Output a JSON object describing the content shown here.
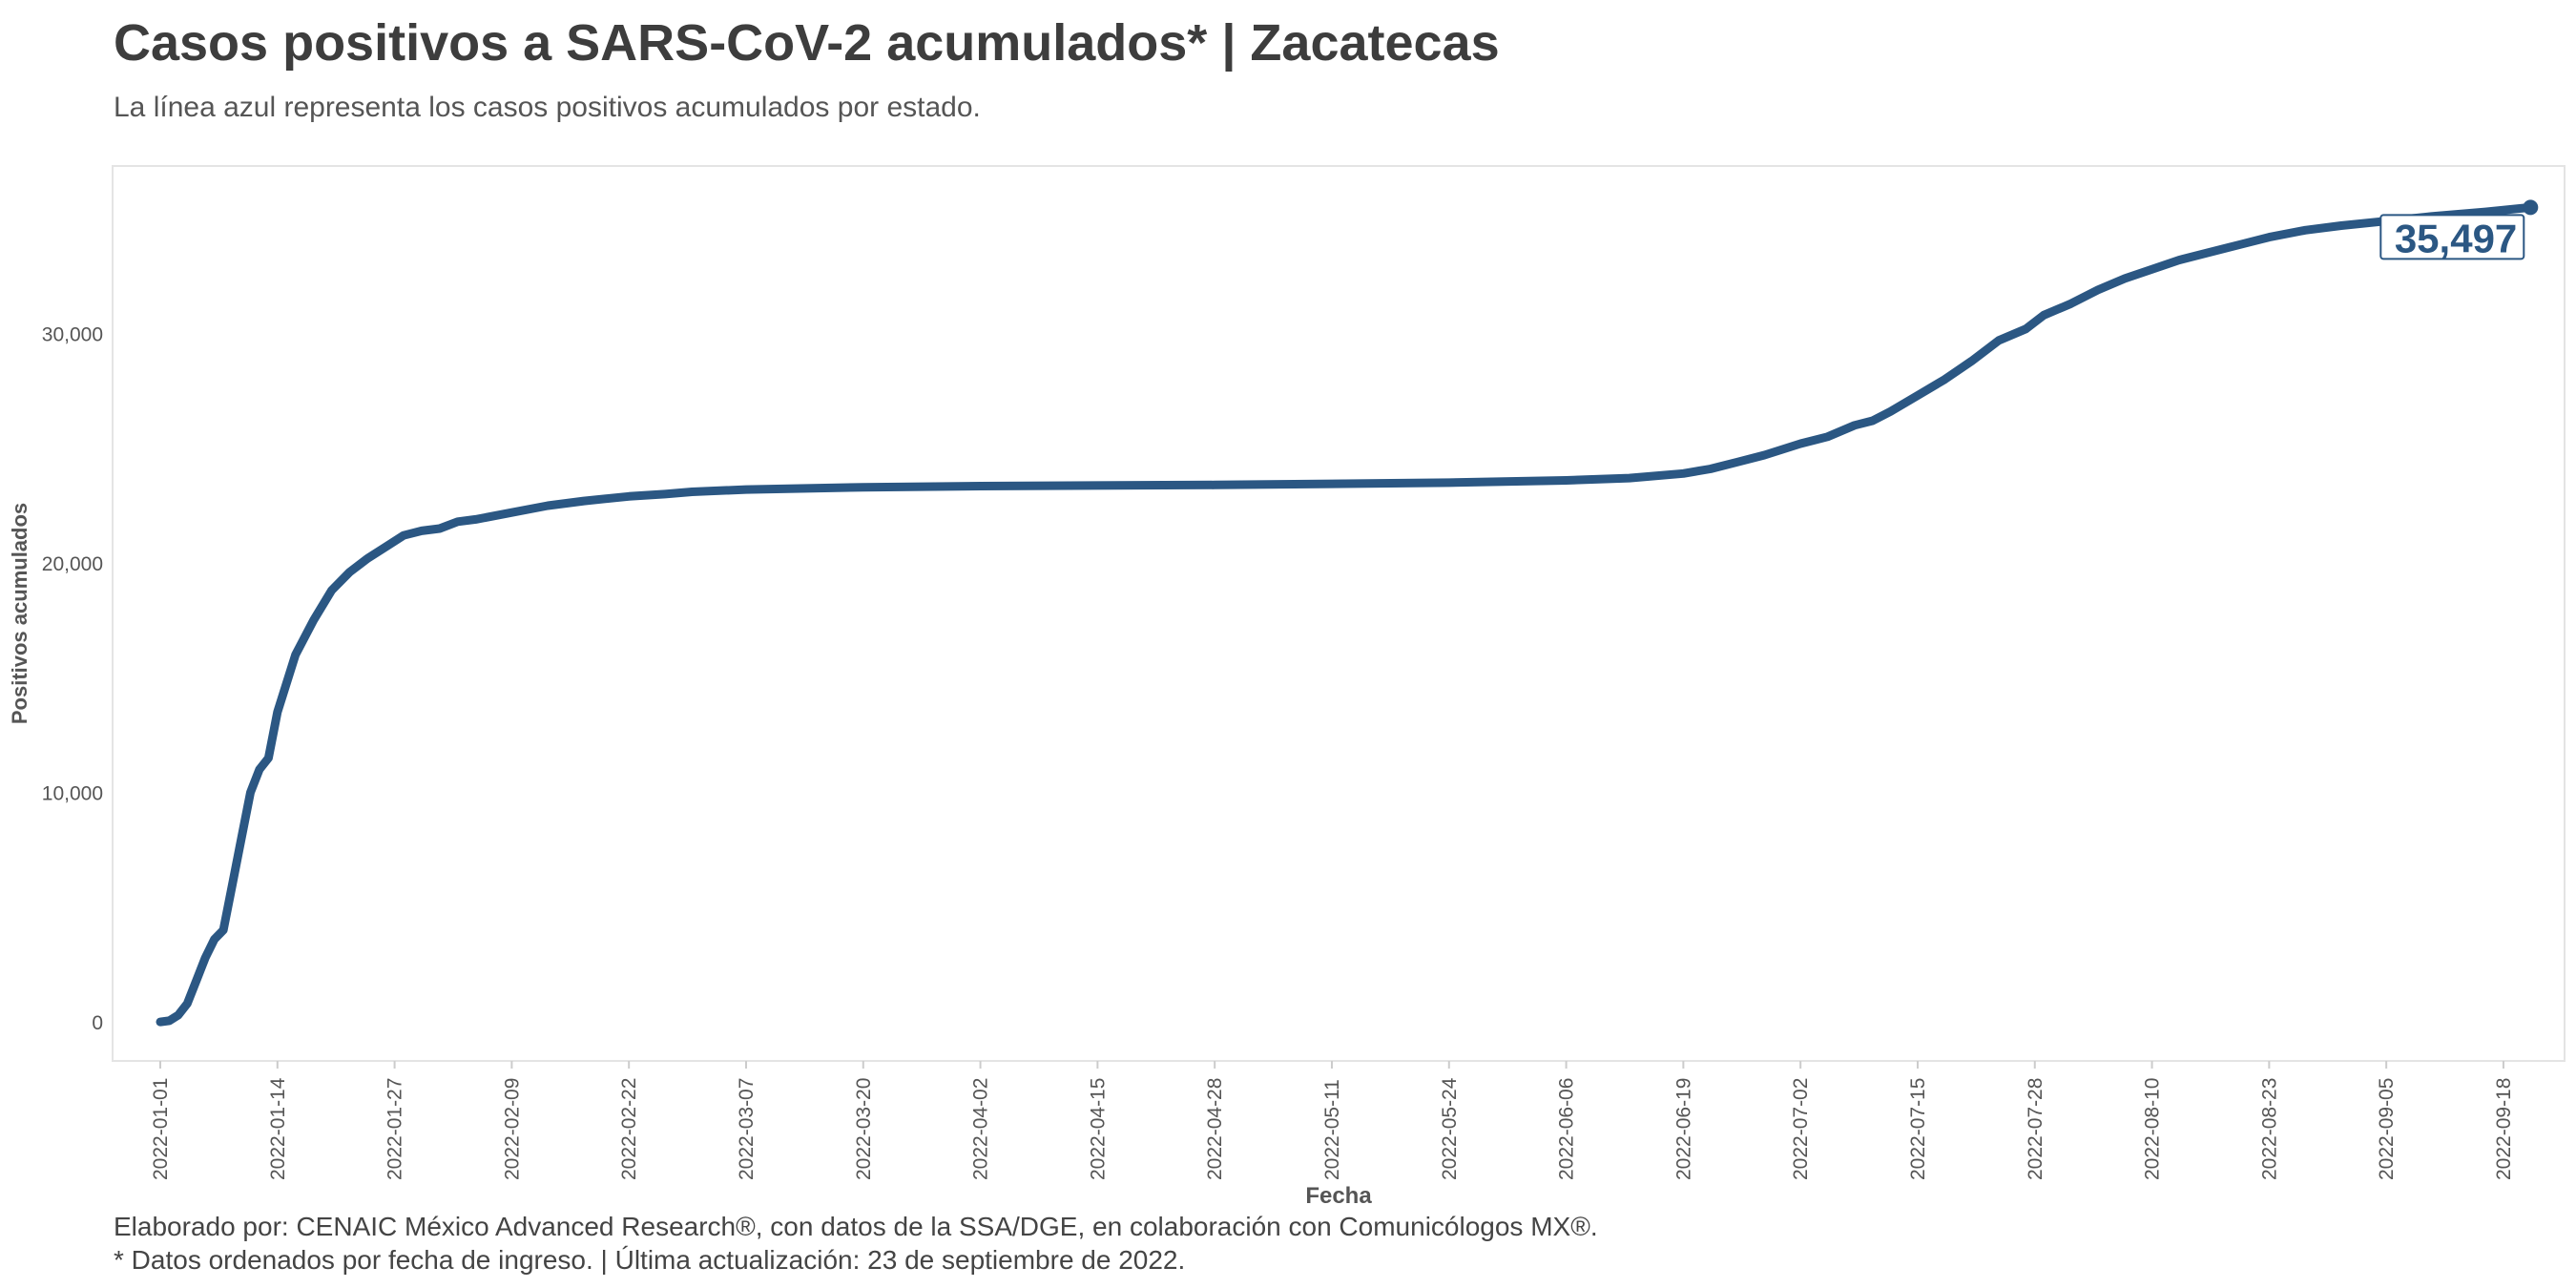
{
  "header": {
    "title": "Casos positivos a SARS-CoV-2 acumulados* | Zacatecas",
    "subtitle": "La línea azul representa los casos positivos acumulados por estado."
  },
  "footer": {
    "credit": "Elaborado por: CENAIC México Advanced Research®, con datos de la SSA/DGE, en colaboración con Comunicólogos MX®.",
    "note": "* Datos ordenados por fecha de ingreso. | Última actualización: 23 de septiembre de 2022."
  },
  "colors": {
    "line": "#2b5783",
    "axis_text": "#555555",
    "frame": "#e4e4e4"
  },
  "chart_data": {
    "type": "line",
    "title": "Casos positivos a SARS-CoV-2 acumulados* | Zacatecas",
    "xlabel": "Fecha",
    "ylabel": "Positivos acumulados",
    "xlim": [
      "2022-01-01",
      "2022-09-21"
    ],
    "ylim": [
      -1700,
      37300
    ],
    "grid": false,
    "x_ticks": [
      "2022-01-01",
      "2022-01-14",
      "2022-01-27",
      "2022-02-09",
      "2022-02-22",
      "2022-03-07",
      "2022-03-20",
      "2022-04-02",
      "2022-04-15",
      "2022-04-28",
      "2022-05-11",
      "2022-05-24",
      "2022-06-06",
      "2022-06-19",
      "2022-07-02",
      "2022-07-15",
      "2022-07-28",
      "2022-08-10",
      "2022-08-23",
      "2022-09-05",
      "2022-09-18"
    ],
    "y_ticks": [
      0,
      10000,
      20000,
      30000
    ],
    "y_tick_labels": [
      "0",
      "10,000",
      "20,000",
      "30,000"
    ],
    "end_label": "35,497",
    "series": [
      {
        "x": [
          "2022-01-01",
          "2022-01-02",
          "2022-01-03",
          "2022-01-04",
          "2022-01-05",
          "2022-01-06",
          "2022-01-07",
          "2022-01-08",
          "2022-01-09",
          "2022-01-10",
          "2022-01-11",
          "2022-01-12",
          "2022-01-13",
          "2022-01-14",
          "2022-01-16",
          "2022-01-18",
          "2022-01-20",
          "2022-01-22",
          "2022-01-24",
          "2022-01-26",
          "2022-01-28",
          "2022-01-30",
          "2022-02-01",
          "2022-02-03",
          "2022-02-05",
          "2022-02-09",
          "2022-02-13",
          "2022-02-17",
          "2022-02-22",
          "2022-02-26",
          "2022-03-01",
          "2022-03-07",
          "2022-03-20",
          "2022-04-02",
          "2022-04-28",
          "2022-05-24",
          "2022-06-06",
          "2022-06-13",
          "2022-06-19",
          "2022-06-22",
          "2022-06-25",
          "2022-06-28",
          "2022-07-02",
          "2022-07-05",
          "2022-07-08",
          "2022-07-10",
          "2022-07-12",
          "2022-07-15",
          "2022-07-18",
          "2022-07-21",
          "2022-07-24",
          "2022-07-27",
          "2022-07-29",
          "2022-08-01",
          "2022-08-04",
          "2022-08-07",
          "2022-08-10",
          "2022-08-13",
          "2022-08-16",
          "2022-08-20",
          "2022-08-23",
          "2022-08-27",
          "2022-08-31",
          "2022-09-05",
          "2022-09-10",
          "2022-09-16",
          "2022-09-21"
        ],
        "y": [
          0,
          50,
          300,
          800,
          1800,
          2800,
          3600,
          4000,
          6000,
          8000,
          10000,
          11000,
          11500,
          13500,
          16000,
          17500,
          18800,
          19600,
          20200,
          20700,
          21200,
          21400,
          21500,
          21800,
          21900,
          22200,
          22500,
          22700,
          22900,
          23000,
          23100,
          23200,
          23300,
          23350,
          23400,
          23500,
          23600,
          23700,
          23900,
          24100,
          24400,
          24700,
          25200,
          25500,
          26000,
          26200,
          26600,
          27300,
          28000,
          28800,
          29700,
          30200,
          30800,
          31300,
          31900,
          32400,
          32800,
          33200,
          33500,
          33900,
          34200,
          34500,
          34700,
          34900,
          35100,
          35300,
          35497
        ]
      }
    ]
  }
}
